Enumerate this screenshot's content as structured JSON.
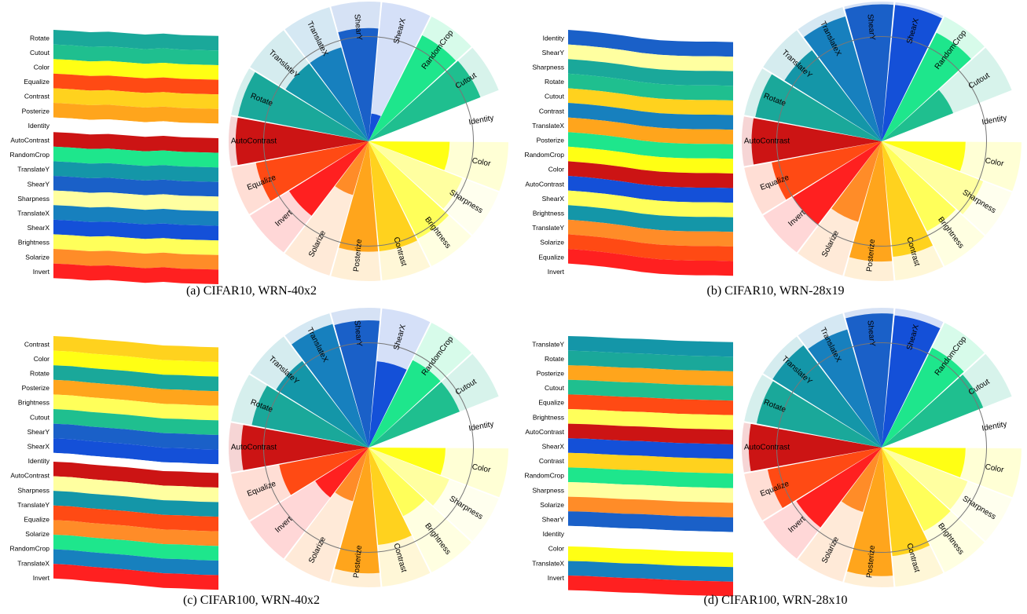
{
  "colors": {
    "Rotate": "#1aa89a",
    "Cutout": "#1fbf8f",
    "Color": "#ffff14",
    "Equalize": "#ff4a14",
    "Contrast": "#ffd21e",
    "Posterize": "#ffa51c",
    "Identity": "#ffffff",
    "AutoContrast": "#cc1414",
    "RandomCrop": "#1ee68c",
    "TranslateY": "#1496a8",
    "ShearY": "#1a60c8",
    "Sharpness": "#ffffa0",
    "TranslateX": "#1780be",
    "ShearX": "#1450d8",
    "Brightness": "#ffff5a",
    "Solarize": "#ff8c28",
    "Invert": "#ff2020"
  },
  "chart_data": [
    {
      "type": "area",
      "variant": "stream-and-polar-rose",
      "caption": "(a) CIFAR10, WRN-40x2",
      "stream_order": [
        "Rotate",
        "Cutout",
        "Color",
        "Equalize",
        "Contrast",
        "Posterize",
        "Identity",
        "AutoContrast",
        "RandomCrop",
        "TranslateY",
        "ShearY",
        "Sharpness",
        "TranslateX",
        "ShearX",
        "Brightness",
        "Solarize",
        "Invert"
      ],
      "stream_values": [
        [
          1,
          1,
          1,
          1,
          1,
          1,
          1,
          1,
          1,
          1
        ],
        [
          1,
          1,
          1,
          1,
          1,
          1,
          1,
          1,
          1,
          1
        ],
        [
          1,
          1,
          1,
          1,
          1,
          1,
          1,
          1,
          1,
          1
        ],
        [
          1,
          1,
          1,
          1,
          1,
          1,
          1,
          1,
          1,
          1
        ],
        [
          1,
          1,
          1,
          1,
          1,
          1,
          1,
          1,
          1,
          1
        ],
        [
          1,
          1,
          1,
          1,
          1,
          1,
          1,
          1,
          1,
          1
        ],
        [
          1,
          1,
          1,
          1,
          1,
          1,
          1,
          1,
          1,
          1
        ],
        [
          1,
          1,
          1,
          1,
          1,
          1,
          1,
          1,
          1,
          1
        ],
        [
          1,
          1,
          1,
          1,
          1,
          1,
          1,
          1,
          1,
          1
        ],
        [
          1,
          1,
          1,
          1,
          1,
          1,
          1,
          1,
          1,
          1
        ],
        [
          1,
          1,
          1,
          1,
          1,
          1,
          1,
          1,
          1,
          1
        ],
        [
          1,
          1,
          1,
          1,
          1,
          1,
          1,
          1,
          1,
          1
        ],
        [
          1,
          1,
          1,
          1,
          1,
          1,
          1,
          1,
          1,
          1
        ],
        [
          1,
          1,
          1,
          1,
          1,
          1,
          1,
          1,
          1,
          1
        ],
        [
          1,
          1,
          1,
          1,
          1,
          1,
          1,
          1,
          1,
          1
        ],
        [
          1,
          1,
          1,
          1,
          1,
          1,
          1,
          1,
          1,
          1
        ],
        [
          1,
          1,
          1,
          1,
          1,
          1,
          1,
          1,
          1,
          1
        ]
      ],
      "stream_wave": [
        0,
        0.2,
        0.5,
        0.4,
        0.7,
        1.0,
        0.8,
        1.1,
        1.2,
        1.3
      ],
      "rose": [
        {
          "label": "Color",
          "value": 0.58
        },
        {
          "label": "Sharpness",
          "value": 0.72
        },
        {
          "label": "Brightness",
          "value": 0.78
        },
        {
          "label": "Contrast",
          "value": 0.79
        },
        {
          "label": "Posterize",
          "value": 0.79
        },
        {
          "label": "Solarize",
          "value": 0.4
        },
        {
          "label": "Invert",
          "value": 0.67
        },
        {
          "label": "Equalize",
          "value": 0.82
        },
        {
          "label": "AutoContrast",
          "value": 0.95
        },
        {
          "label": "Rotate",
          "value": 0.95
        },
        {
          "label": "TranslateY",
          "value": 0.7
        },
        {
          "label": "TranslateX",
          "value": 0.7
        },
        {
          "label": "ShearY",
          "value": 0.81
        },
        {
          "label": "ShearX",
          "value": 0.2
        },
        {
          "label": "RandomCrop",
          "value": 0.85
        },
        {
          "label": "Cutout",
          "value": 0.86
        },
        {
          "label": "Identity",
          "value": 0.0
        }
      ]
    },
    {
      "type": "area",
      "variant": "stream-and-polar-rose",
      "caption": "(b) CIFAR10, WRN-28x19",
      "stream_order": [
        "Identity",
        "ShearY",
        "Sharpness",
        "Rotate",
        "Cutout",
        "Contrast",
        "TranslateX",
        "Posterize",
        "RandomCrop",
        "Color",
        "AutoContrast",
        "ShearX",
        "Brightness",
        "TranslateY",
        "Solarize",
        "Equalize",
        "Invert"
      ],
      "stream_values": [
        [
          0,
          0,
          0,
          0,
          0,
          0,
          0,
          0,
          0,
          0
        ],
        [
          1,
          1,
          1,
          1,
          1,
          1,
          1,
          1,
          1,
          1
        ],
        [
          1,
          1,
          1,
          1,
          1,
          1,
          1,
          1,
          1,
          1
        ],
        [
          1,
          1,
          1,
          1,
          1,
          1,
          1,
          1,
          1,
          1
        ],
        [
          1,
          1,
          1,
          1,
          1,
          1,
          1,
          1,
          1,
          1
        ],
        [
          1,
          1,
          1,
          1,
          1,
          1,
          1,
          1,
          1,
          1
        ],
        [
          1,
          1,
          1,
          1,
          1,
          1,
          1,
          1,
          1,
          1
        ],
        [
          1,
          1,
          1,
          1,
          1,
          1,
          1,
          1,
          1,
          1
        ],
        [
          1,
          1,
          1,
          1,
          1,
          1,
          1,
          1,
          1,
          1
        ],
        [
          1,
          1,
          1,
          1,
          1,
          1,
          1,
          1,
          1,
          1
        ],
        [
          1,
          1,
          1,
          1,
          1,
          1,
          1,
          1,
          1,
          1
        ],
        [
          1,
          1,
          1,
          1,
          1,
          1,
          1,
          1,
          1,
          1
        ],
        [
          1,
          1,
          1,
          1,
          1,
          1,
          1,
          1,
          1,
          1
        ],
        [
          1,
          1,
          1,
          1,
          1,
          1,
          1,
          1,
          1,
          1
        ],
        [
          1,
          1,
          1,
          1,
          1,
          1,
          1,
          1,
          1,
          1
        ],
        [
          1,
          1,
          1,
          1,
          1,
          1,
          1,
          1,
          1,
          1
        ],
        [
          1,
          1,
          1,
          1,
          1,
          1,
          1,
          1,
          1,
          1
        ]
      ],
      "stream_wave": [
        0,
        0.3,
        0.7,
        1.2,
        1.8,
        2.2,
        2.4,
        2.5,
        2.5,
        2.6
      ],
      "rose": [
        {
          "label": "Color",
          "value": 0.6
        },
        {
          "label": "Sharpness",
          "value": 0.78
        },
        {
          "label": "Brightness",
          "value": 0.72
        },
        {
          "label": "Contrast",
          "value": 0.83
        },
        {
          "label": "Posterize",
          "value": 0.86
        },
        {
          "label": "Solarize",
          "value": 0.6
        },
        {
          "label": "Invert",
          "value": 0.75
        },
        {
          "label": "Equalize",
          "value": 0.8
        },
        {
          "label": "AutoContrast",
          "value": 0.93
        },
        {
          "label": "Rotate",
          "value": 0.92
        },
        {
          "label": "TranslateY",
          "value": 0.82
        },
        {
          "label": "TranslateX",
          "value": 0.93
        },
        {
          "label": "ShearY",
          "value": 0.98
        },
        {
          "label": "ShearX",
          "value": 0.98
        },
        {
          "label": "RandomCrop",
          "value": 0.87
        },
        {
          "label": "Cutout",
          "value": 0.55
        },
        {
          "label": "Identity",
          "value": 0.0
        }
      ]
    },
    {
      "type": "area",
      "variant": "stream-and-polar-rose",
      "caption": "(c) CIFAR100, WRN-40x2",
      "stream_order": [
        "Contrast",
        "Color",
        "Rotate",
        "Posterize",
        "Brightness",
        "Cutout",
        "ShearY",
        "ShearX",
        "Identity",
        "AutoContrast",
        "Sharpness",
        "TranslateY",
        "Equalize",
        "Solarize",
        "RandomCrop",
        "TranslateX",
        "Invert"
      ],
      "stream_values": [
        [
          1,
          1,
          1,
          1,
          1,
          1,
          1,
          1,
          1,
          1
        ],
        [
          1,
          1,
          1,
          1,
          1,
          1,
          1,
          1,
          1,
          1
        ],
        [
          1,
          1,
          1,
          1,
          1,
          1,
          1,
          1,
          1,
          1
        ],
        [
          1,
          1,
          1,
          1,
          1,
          1,
          1,
          1,
          1,
          1
        ],
        [
          1,
          1,
          1,
          1,
          1,
          1,
          1,
          1,
          1,
          1
        ],
        [
          1,
          1,
          1,
          1,
          1,
          1,
          1,
          1,
          1,
          1
        ],
        [
          1,
          1,
          1,
          1,
          1,
          1,
          1,
          1,
          1,
          1
        ],
        [
          1,
          1,
          1,
          1,
          1,
          1,
          1,
          1,
          1,
          1
        ],
        [
          0.6,
          0.6,
          0.6,
          0.6,
          0.6,
          0.6,
          0.6,
          0.6,
          0.6,
          0.6
        ],
        [
          1,
          1,
          1,
          1,
          1,
          1,
          1,
          1,
          1,
          1
        ],
        [
          1,
          1,
          1,
          1,
          1,
          1,
          1,
          1,
          1,
          1
        ],
        [
          1,
          1,
          1,
          1,
          1,
          1,
          1,
          1,
          1,
          1
        ],
        [
          1,
          1,
          1,
          1,
          1,
          1,
          1,
          1,
          1,
          1
        ],
        [
          1,
          1,
          1,
          1,
          1,
          1,
          1,
          1,
          1,
          1
        ],
        [
          1,
          1,
          1,
          1,
          1,
          1,
          1,
          1,
          1,
          1
        ],
        [
          1,
          1,
          1,
          1,
          1,
          1,
          1,
          1,
          1,
          1
        ],
        [
          1,
          1,
          1,
          1,
          1,
          1,
          1,
          1,
          1,
          1
        ]
      ],
      "stream_wave": [
        0,
        0.2,
        0.6,
        0.9,
        1.2,
        1.6,
        2.0,
        2.1,
        2.3,
        2.4
      ],
      "rose": [
        {
          "label": "Color",
          "value": 0.55
        },
        {
          "label": "Sharpness",
          "value": 0.62
        },
        {
          "label": "Brightness",
          "value": 0.55
        },
        {
          "label": "Contrast",
          "value": 0.7
        },
        {
          "label": "Posterize",
          "value": 0.9
        },
        {
          "label": "Solarize",
          "value": 0.4
        },
        {
          "label": "Invert",
          "value": 0.45
        },
        {
          "label": "Equalize",
          "value": 0.65
        },
        {
          "label": "AutoContrast",
          "value": 0.91
        },
        {
          "label": "Rotate",
          "value": 0.85
        },
        {
          "label": "TranslateY",
          "value": 0.78
        },
        {
          "label": "TranslateX",
          "value": 0.92
        },
        {
          "label": "ShearY",
          "value": 0.91
        },
        {
          "label": "ShearX",
          "value": 0.62
        },
        {
          "label": "RandomCrop",
          "value": 0.7
        },
        {
          "label": "Cutout",
          "value": 0.7
        },
        {
          "label": "Identity",
          "value": 0.0
        }
      ]
    },
    {
      "type": "area",
      "variant": "stream-and-polar-rose",
      "caption": "(d) CIFAR100, WRN-28x10",
      "stream_order": [
        "TranslateY",
        "Rotate",
        "Posterize",
        "Cutout",
        "Equalize",
        "Brightness",
        "AutoContrast",
        "ShearX",
        "Contrast",
        "RandomCrop",
        "Sharpness",
        "Solarize",
        "ShearY",
        "Identity",
        "Color",
        "TranslateX",
        "Invert"
      ],
      "stream_values": [
        [
          1,
          1,
          1,
          1,
          1,
          1,
          1,
          1,
          1,
          1
        ],
        [
          1,
          1,
          1,
          1,
          1,
          1,
          1,
          1,
          1,
          1
        ],
        [
          1,
          1,
          1,
          1,
          1,
          1,
          1,
          1,
          1,
          1
        ],
        [
          1,
          1,
          1,
          1,
          1,
          1,
          1,
          1,
          1,
          1
        ],
        [
          1,
          1,
          1,
          1,
          1,
          1,
          1,
          1,
          1,
          1
        ],
        [
          1,
          1,
          1,
          1,
          1,
          1,
          1,
          1,
          1,
          1
        ],
        [
          1,
          1,
          1,
          1,
          1,
          1,
          1,
          1,
          1,
          1
        ],
        [
          1,
          1,
          1,
          1,
          1,
          1,
          1,
          1,
          1,
          1
        ],
        [
          1,
          1,
          1,
          1,
          1,
          1,
          1,
          1,
          1,
          1
        ],
        [
          1,
          1,
          1,
          1,
          1,
          1,
          1,
          1,
          1,
          1
        ],
        [
          1,
          1,
          1,
          1,
          1,
          1,
          1,
          1,
          1,
          1
        ],
        [
          1,
          1,
          1,
          1,
          1,
          1,
          1,
          1,
          1,
          1
        ],
        [
          1,
          1,
          1,
          1,
          1,
          1,
          1,
          1,
          1,
          1
        ],
        [
          1.4,
          1.4,
          1.4,
          1.4,
          1.4,
          1.4,
          1.4,
          1.4,
          1.4,
          1.4
        ],
        [
          1,
          1,
          1,
          1,
          1,
          1,
          1,
          1,
          1,
          1
        ],
        [
          1,
          1,
          1,
          1,
          1,
          1,
          1,
          1,
          1,
          1
        ],
        [
          1,
          1,
          1,
          1,
          1,
          1,
          1,
          1,
          1,
          1
        ]
      ],
      "stream_wave": [
        0,
        0.1,
        0.3,
        0.5,
        0.6,
        0.8,
        1.0,
        1.1,
        1.2,
        1.3
      ],
      "rose": [
        {
          "label": "Color",
          "value": 0.6
        },
        {
          "label": "Sharpness",
          "value": 0.66
        },
        {
          "label": "Brightness",
          "value": 0.67
        },
        {
          "label": "Contrast",
          "value": 0.78
        },
        {
          "label": "Posterize",
          "value": 0.92
        },
        {
          "label": "Solarize",
          "value": 0.48
        },
        {
          "label": "Invert",
          "value": 0.72
        },
        {
          "label": "Equalize",
          "value": 0.83
        },
        {
          "label": "AutoContrast",
          "value": 0.95
        },
        {
          "label": "Rotate",
          "value": 0.91
        },
        {
          "label": "TranslateY",
          "value": 0.92
        },
        {
          "label": "TranslateX",
          "value": 0.88
        },
        {
          "label": "ShearY",
          "value": 0.96
        },
        {
          "label": "ShearX",
          "value": 0.95
        },
        {
          "label": "RandomCrop",
          "value": 0.8
        },
        {
          "label": "Cutout",
          "value": 0.78
        },
        {
          "label": "Identity",
          "value": 0.0
        }
      ]
    }
  ]
}
